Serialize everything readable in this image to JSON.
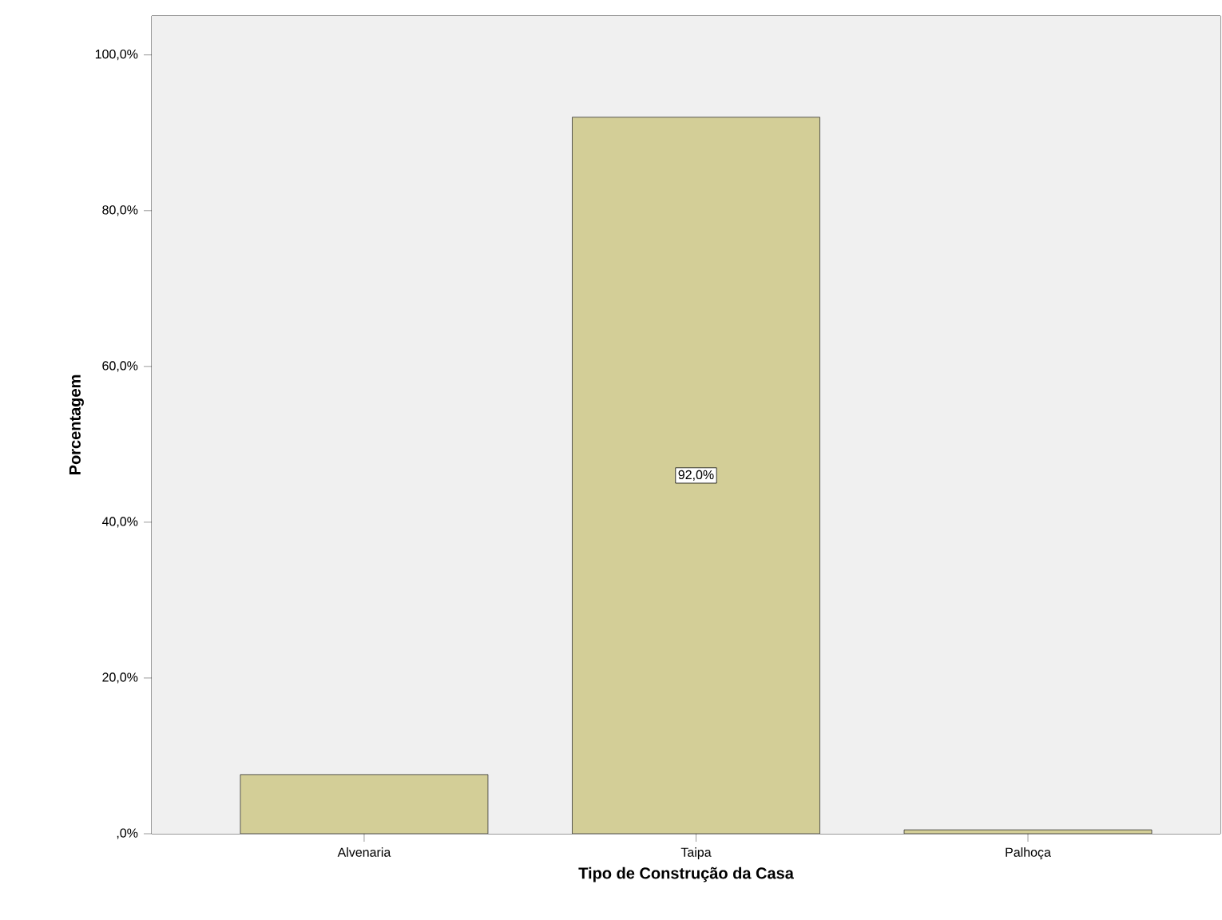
{
  "chart_data": {
    "type": "bar",
    "xlabel": "Tipo de Construção da Casa",
    "ylabel": "Porcentagem",
    "categories": [
      "Alvenaria",
      "Taipa",
      "Palhoça"
    ],
    "values": [
      7.6,
      92.0,
      0.5
    ],
    "color": "#d3ce97",
    "value_labels": [
      null,
      "92,0%",
      null
    ],
    "yticks": [
      {
        "value": 0,
        "label": ",0%"
      },
      {
        "value": 20,
        "label": "20,0%"
      },
      {
        "value": 40,
        "label": "40,0%"
      },
      {
        "value": 60,
        "label": "60,0%"
      },
      {
        "value": 80,
        "label": "80,0%"
      },
      {
        "value": 100,
        "label": "100,0%"
      }
    ],
    "ylim": [
      0,
      105
    ]
  }
}
